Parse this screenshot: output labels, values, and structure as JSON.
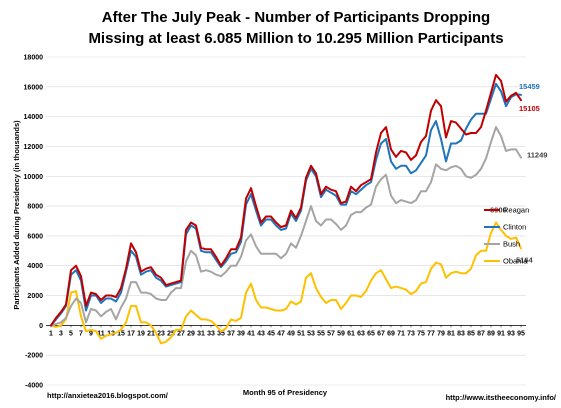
{
  "chart_data": {
    "type": "line",
    "title_line1": "After The July Peak - Number of Participants Dropping",
    "title_line2": "Missing at least  6.085 Million to 10.295 Million Participants",
    "ylabel": "Participants Added during Presidency (in thousands)",
    "xlabel": "Month 95 of Presidency",
    "ylim": [
      -4000,
      18000
    ],
    "yticks": [
      -4000,
      -2000,
      0,
      2000,
      4000,
      6000,
      8000,
      10000,
      12000,
      14000,
      16000,
      18000
    ],
    "xlim": [
      1,
      95
    ],
    "xtick_labels": [
      "1",
      "3",
      "5",
      "7",
      "9",
      "11",
      "13",
      "15",
      "17",
      "19",
      "21",
      "23",
      "25",
      "27",
      "29",
      "31",
      "33",
      "35",
      "37",
      "39",
      "41",
      "43",
      "45",
      "47",
      "49",
      "51",
      "53",
      "55",
      "57",
      "59",
      "61",
      "63",
      "65",
      "67",
      "69",
      "71",
      "73",
      "75",
      "77",
      "79",
      "81",
      "83",
      "85",
      "87",
      "89",
      "91",
      "93",
      "95"
    ],
    "grid": true,
    "legend_position": "right",
    "series": [
      {
        "name": "Reagan",
        "color": "#c00000",
        "values": [
          0,
          500,
          900,
          1400,
          3700,
          4000,
          3300,
          1300,
          2200,
          2100,
          1700,
          2000,
          2000,
          1900,
          2500,
          3800,
          5500,
          4900,
          3600,
          3800,
          3900,
          3400,
          3200,
          2700,
          2800,
          2900,
          3000,
          6400,
          6900,
          6700,
          5200,
          5100,
          5100,
          4600,
          4000,
          4500,
          5100,
          5100,
          5900,
          8500,
          9200,
          8000,
          6900,
          7300,
          7300,
          6900,
          6600,
          6700,
          7700,
          7200,
          7900,
          9900,
          10700,
          10200,
          8800,
          9300,
          9100,
          9000,
          8200,
          8300,
          9300,
          9000,
          9400,
          9600,
          9800,
          11600,
          12900,
          13300,
          11800,
          11300,
          11700,
          11600,
          11100,
          11400,
          12300,
          12700,
          14400,
          15100,
          14700,
          12600,
          13700,
          13600,
          13200,
          12800,
          12900,
          12900,
          13300,
          14400,
          15600,
          16800,
          16400,
          15000,
          15400,
          15600,
          15105
        ],
        "end_label": "15105"
      },
      {
        "name": "Clinton",
        "color": "#1f74bb",
        "values": [
          0,
          400,
          800,
          1300,
          3400,
          3700,
          3000,
          1000,
          2000,
          2000,
          1500,
          1800,
          1800,
          1600,
          2200,
          3600,
          5000,
          4600,
          3400,
          3600,
          3700,
          3200,
          3000,
          2600,
          2700,
          2800,
          2900,
          6100,
          6700,
          6500,
          5000,
          4900,
          4900,
          4400,
          3900,
          4300,
          4800,
          4900,
          5600,
          8100,
          8800,
          7700,
          6700,
          7100,
          7100,
          6700,
          6400,
          6500,
          7500,
          7000,
          7700,
          9700,
          10500,
          10000,
          8600,
          9100,
          8900,
          8700,
          8100,
          8100,
          9000,
          8800,
          9100,
          9400,
          9600,
          11100,
          12200,
          12500,
          11000,
          10500,
          10700,
          10700,
          10200,
          10400,
          10900,
          11400,
          13100,
          13700,
          12500,
          11000,
          12200,
          12200,
          12400,
          13200,
          13800,
          14200,
          14200,
          14200,
          15200,
          16200,
          15700,
          14700,
          15300,
          15500,
          15459
        ],
        "end_label": "15459"
      },
      {
        "name": "Bush",
        "color": "#a5a5a5",
        "values": [
          0,
          100,
          200,
          500,
          1300,
          1800,
          1500,
          200,
          1100,
          1000,
          600,
          900,
          1100,
          400,
          1200,
          1800,
          2900,
          2900,
          2200,
          2200,
          2100,
          1800,
          1700,
          1700,
          2200,
          2500,
          2500,
          4300,
          5000,
          4700,
          3600,
          3700,
          3600,
          3400,
          3300,
          3600,
          4000,
          4000,
          4600,
          5700,
          6100,
          5300,
          4800,
          4800,
          4800,
          4800,
          4500,
          4800,
          5500,
          5200,
          6000,
          7000,
          8000,
          7000,
          6700,
          7100,
          7100,
          6800,
          6400,
          6700,
          7400,
          7600,
          7600,
          7900,
          8100,
          9300,
          9800,
          10100,
          8700,
          8200,
          8400,
          8300,
          8200,
          8400,
          9000,
          9000,
          9600,
          10800,
          10500,
          10400,
          10600,
          10700,
          10500,
          10000,
          9900,
          10100,
          10500,
          11200,
          12300,
          13300,
          12700,
          11700,
          11800,
          11800,
          11249
        ],
        "end_label": "11249"
      },
      {
        "name": "Obama",
        "color": "#ffc000",
        "values": [
          0,
          -100,
          0,
          400,
          2200,
          2300,
          600,
          -400,
          -300,
          -400,
          -900,
          -700,
          -600,
          -500,
          -300,
          200,
          1300,
          1300,
          200,
          200,
          0,
          -500,
          -1200,
          -1100,
          -800,
          -300,
          -300,
          600,
          1000,
          700,
          400,
          400,
          300,
          0,
          -400,
          -200,
          400,
          300,
          500,
          2200,
          2800,
          1700,
          1200,
          1200,
          1100,
          1000,
          1000,
          1100,
          1600,
          1400,
          1600,
          3200,
          3500,
          2500,
          1900,
          1500,
          1700,
          1700,
          1100,
          1500,
          2000,
          2000,
          1900,
          2300,
          3000,
          3500,
          3700,
          3100,
          2500,
          2600,
          2500,
          2400,
          2100,
          2300,
          2800,
          2900,
          3800,
          4200,
          4100,
          3200,
          3500,
          3600,
          3500,
          3500,
          3800,
          4700,
          5000,
          5000,
          6200,
          6900,
          6400,
          6000,
          5800,
          5900,
          5164
        ],
        "end_label": "5164"
      }
    ],
    "annotations": [
      {
        "text": "6900",
        "x": 90,
        "y": 6900
      }
    ]
  },
  "footer": {
    "left": "http://anxietea2016.blogspot.com/",
    "right": "http://www.itstheeconomy.info/"
  }
}
